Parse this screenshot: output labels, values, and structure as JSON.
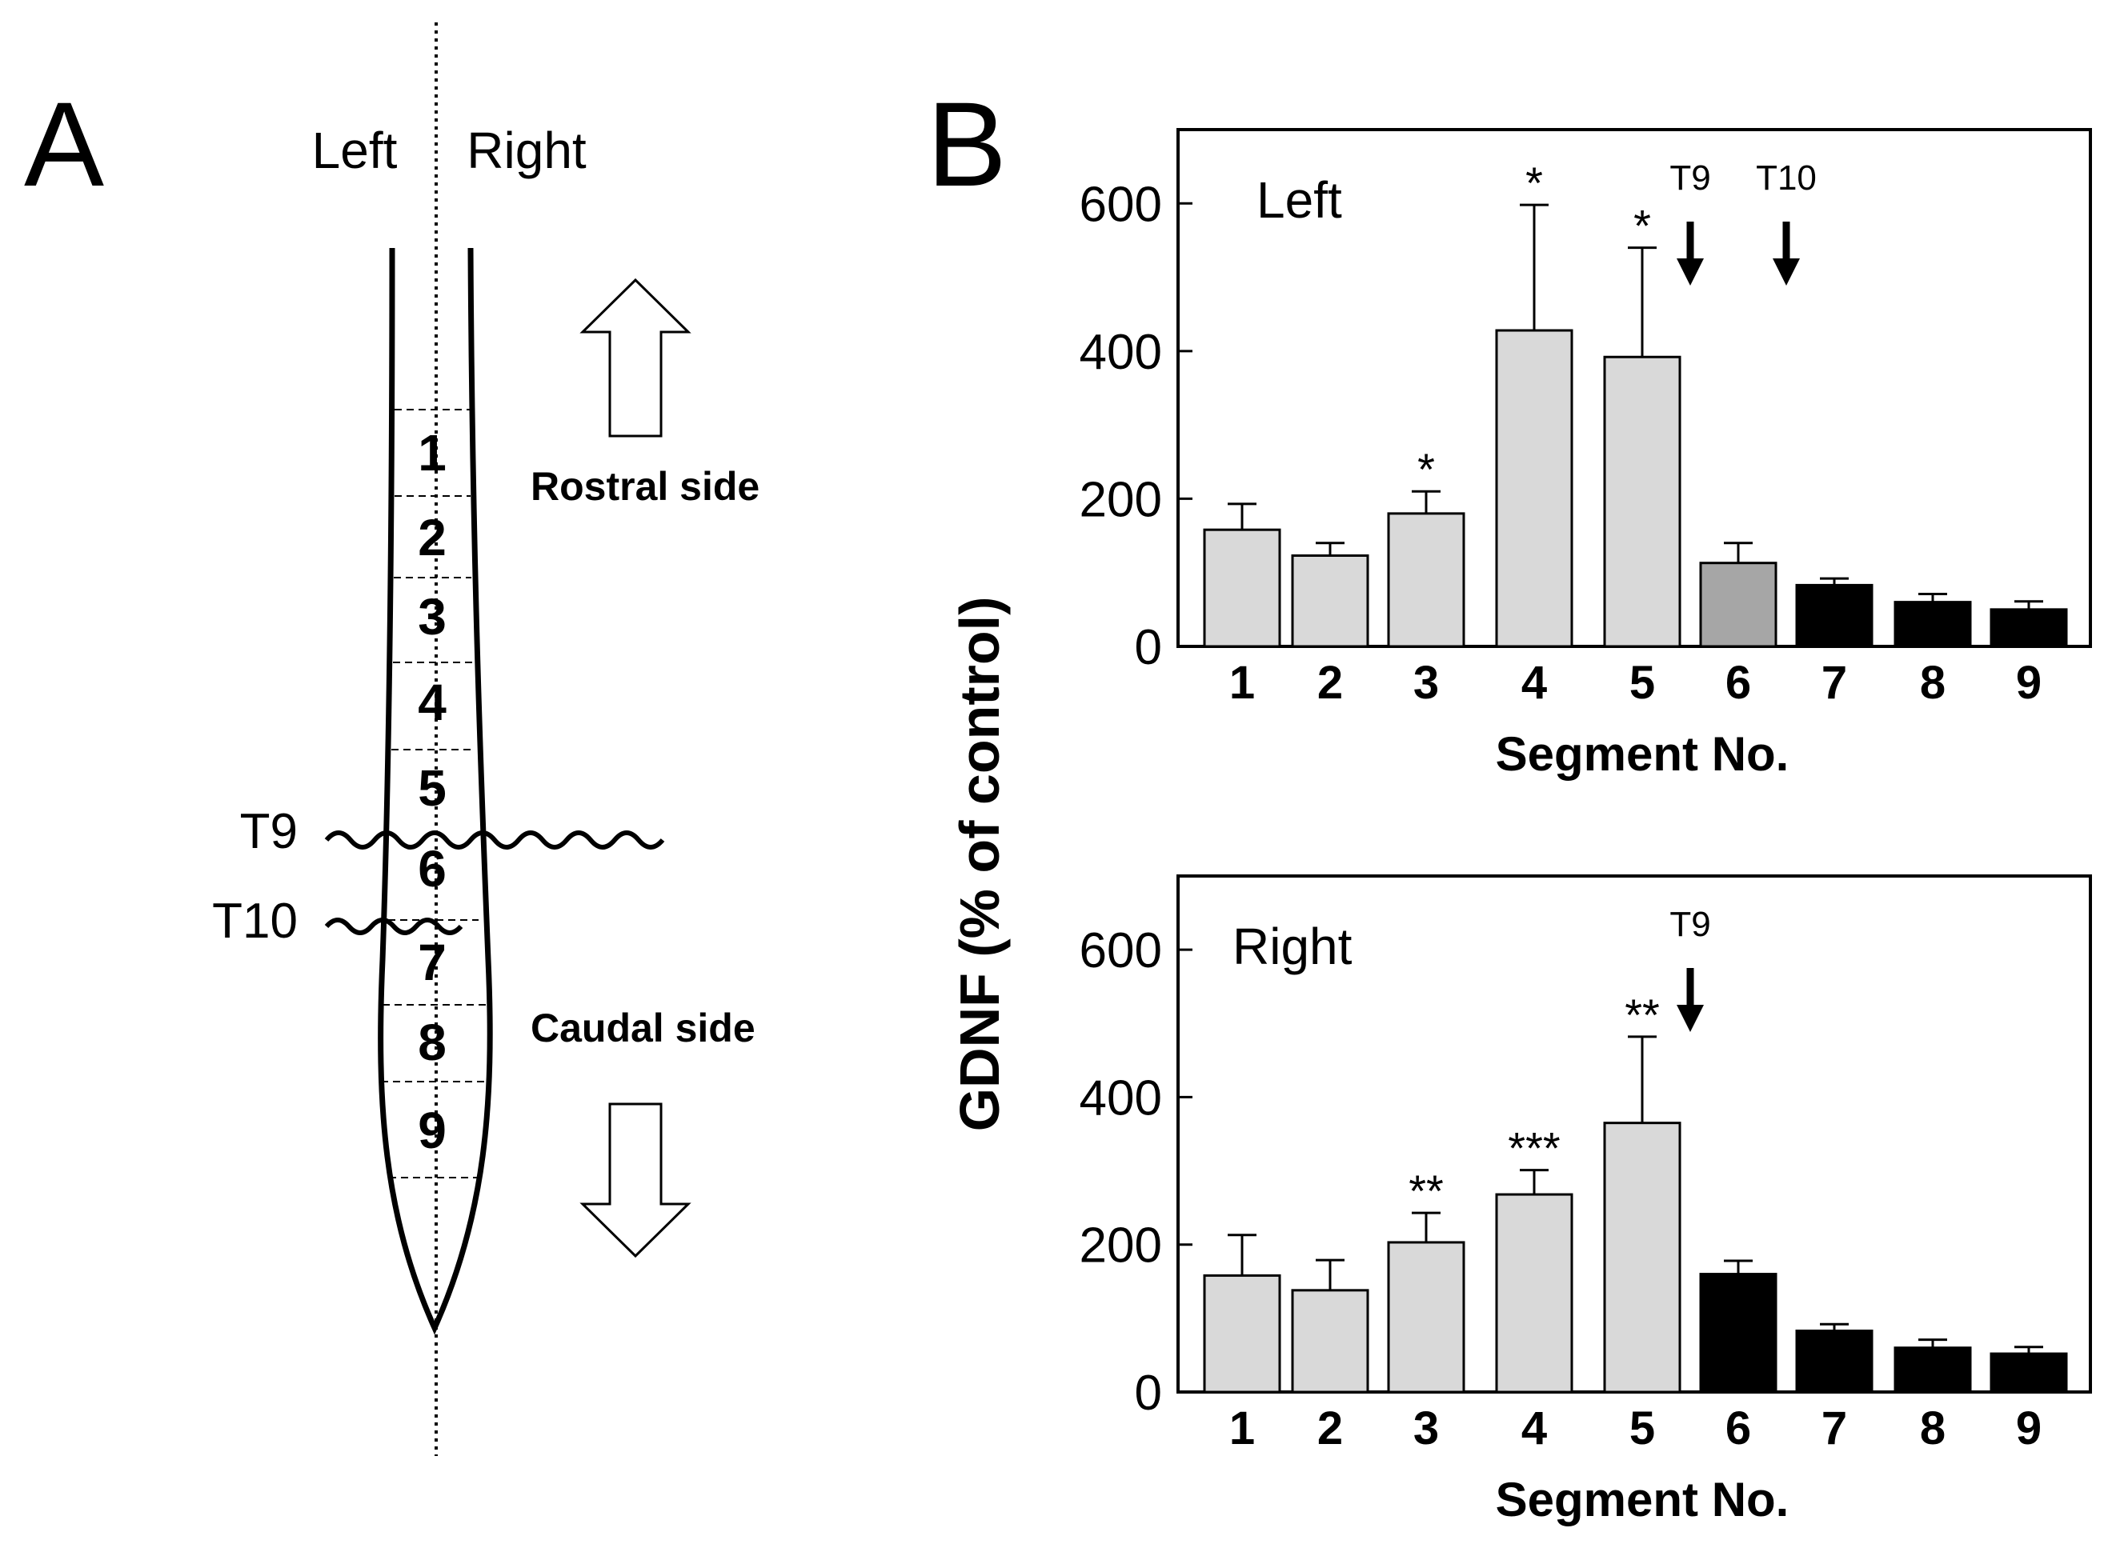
{
  "panel_a": {
    "letter": "A",
    "left_label": "Left",
    "right_label": "Right",
    "segments": [
      "1",
      "2",
      "3",
      "4",
      "5",
      "6",
      "7",
      "8",
      "9"
    ],
    "rostral_label": "Rostral  side",
    "caudal_label": "Caudal side",
    "cut_labels": [
      "T9",
      "T10"
    ]
  },
  "panel_b": {
    "letter": "B",
    "ylabel": "GDNF (% of control)"
  },
  "colors": {
    "light": "#d9d9d9",
    "mid": "#a6a6a6",
    "dark": "#000000"
  },
  "chart_data": [
    {
      "type": "bar",
      "title": "Left",
      "xlabel": "Segment No.",
      "ylabel": "GDNF (% of control)",
      "categories": [
        "1",
        "2",
        "3",
        "4",
        "5",
        "6",
        "7",
        "8",
        "9"
      ],
      "values": [
        158,
        123,
        180,
        428,
        392,
        113,
        83,
        60,
        50
      ],
      "errors": [
        35,
        17,
        30,
        170,
        148,
        27,
        9,
        11,
        11
      ],
      "bar_colors": [
        "light",
        "light",
        "light",
        "light",
        "light",
        "mid",
        "dark",
        "dark",
        "dark"
      ],
      "significance": [
        "",
        "",
        "*",
        "*",
        "*",
        "",
        "",
        "",
        ""
      ],
      "arrows": [
        {
          "label": "T9",
          "between": [
            5,
            6
          ]
        },
        {
          "label": "T10",
          "between": [
            6,
            7
          ]
        }
      ],
      "yticks": [
        0,
        200,
        400,
        600
      ],
      "ylim": [
        0,
        700
      ]
    },
    {
      "type": "bar",
      "title": "Right",
      "xlabel": "Segment No.",
      "ylabel": "GDNF (% of control)",
      "categories": [
        "1",
        "2",
        "3",
        "4",
        "5",
        "6",
        "7",
        "8",
        "9"
      ],
      "values": [
        158,
        138,
        203,
        268,
        365,
        160,
        83,
        60,
        52
      ],
      "errors": [
        55,
        41,
        40,
        33,
        117,
        18,
        9,
        11,
        9
      ],
      "bar_colors": [
        "light",
        "light",
        "light",
        "light",
        "light",
        "dark",
        "dark",
        "dark",
        "dark"
      ],
      "significance": [
        "",
        "",
        "**",
        "***",
        "**",
        "",
        "",
        "",
        ""
      ],
      "arrows": [
        {
          "label": "T9",
          "between": [
            5,
            6
          ]
        }
      ],
      "yticks": [
        0,
        200,
        400,
        600
      ],
      "ylim": [
        0,
        700
      ]
    }
  ]
}
